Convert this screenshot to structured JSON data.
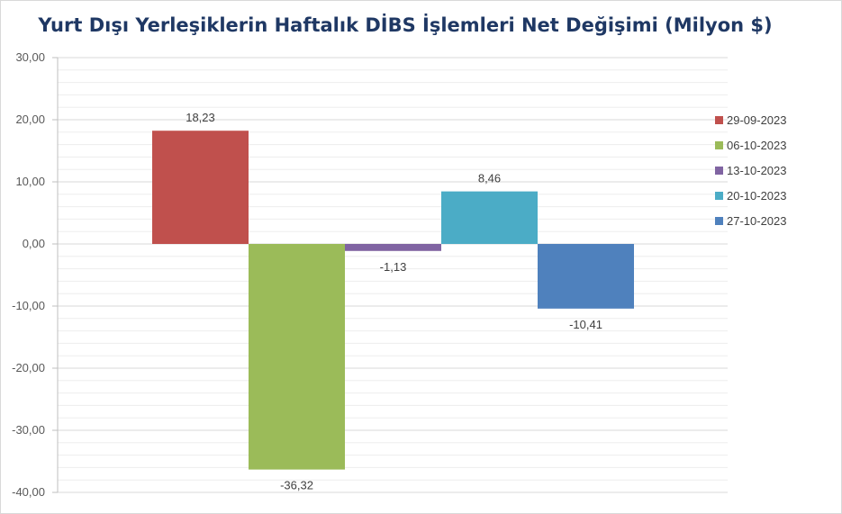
{
  "chart_data": {
    "type": "bar",
    "title": "Yurt Dışı Yerleşiklerin Haftalık DİBS İşlemleri Net Değişimi (Milyon $)",
    "ylim": [
      -40,
      30
    ],
    "yticks": [
      "30,00",
      "20,00",
      "10,00",
      "0,00",
      "-10,00",
      "-20,00",
      "-30,00",
      "-40,00"
    ],
    "ytick_values": [
      30,
      20,
      10,
      0,
      -10,
      -20,
      -30,
      -40
    ],
    "grid": true,
    "legend_position": "right",
    "series": [
      {
        "name": "29-09-2023",
        "value": 18.23,
        "label": "18,23",
        "color": "#c0504d"
      },
      {
        "name": "06-10-2023",
        "value": -36.32,
        "label": "-36,32",
        "color": "#9bbb59"
      },
      {
        "name": "13-10-2023",
        "value": -1.13,
        "label": "-1,13",
        "color": "#8064a2"
      },
      {
        "name": "20-10-2023",
        "value": 8.46,
        "label": "8,46",
        "color": "#4bacc6"
      },
      {
        "name": "27-10-2023",
        "value": -10.41,
        "label": "-10,41",
        "color": "#4f81bd"
      }
    ]
  }
}
